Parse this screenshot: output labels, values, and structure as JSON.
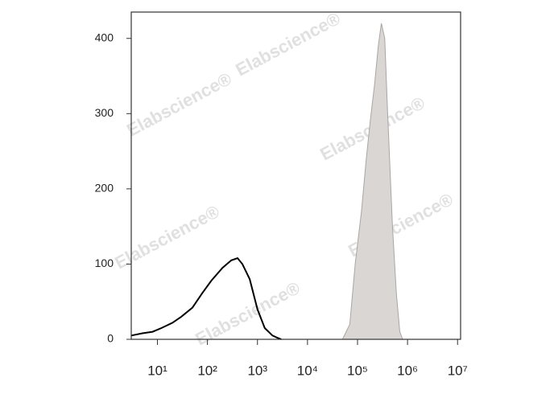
{
  "chart_data": {
    "type": "histogram",
    "watermark": "Elabscience®",
    "xscale": "log",
    "xlim": [
      3,
      11500000
    ],
    "xticks": [
      {
        "value": 10,
        "label": "10¹"
      },
      {
        "value": 100,
        "label": "10²"
      },
      {
        "value": 1000,
        "label": "10³"
      },
      {
        "value": 10000,
        "label": "10⁴"
      },
      {
        "value": 100000,
        "label": "10⁵"
      },
      {
        "value": 1000000,
        "label": "10⁶"
      },
      {
        "value": 10000000,
        "label": "10⁷"
      }
    ],
    "ylim": [
      0,
      435
    ],
    "yticks": [
      0,
      100,
      200,
      300,
      400
    ],
    "series": [
      {
        "color": "#000000",
        "filled": false,
        "x": [
          3,
          5,
          8,
          12,
          20,
          30,
          50,
          80,
          120,
          200,
          300,
          400,
          500,
          700,
          1000,
          1400,
          2000,
          2500,
          3000
        ],
        "values": [
          5,
          8,
          10,
          15,
          22,
          30,
          42,
          62,
          78,
          95,
          105,
          108,
          100,
          80,
          40,
          15,
          5,
          2,
          0
        ]
      },
      {
        "color": "#d9d6d3",
        "filled": true,
        "x": [
          50000,
          70000,
          90000,
          120000,
          150000,
          180000,
          220000,
          260000,
          300000,
          350000,
          400000,
          500000,
          600000,
          700000,
          800000
        ],
        "values": [
          0,
          20,
          100,
          170,
          240,
          290,
          340,
          390,
          420,
          400,
          300,
          150,
          60,
          10,
          0
        ]
      }
    ]
  }
}
